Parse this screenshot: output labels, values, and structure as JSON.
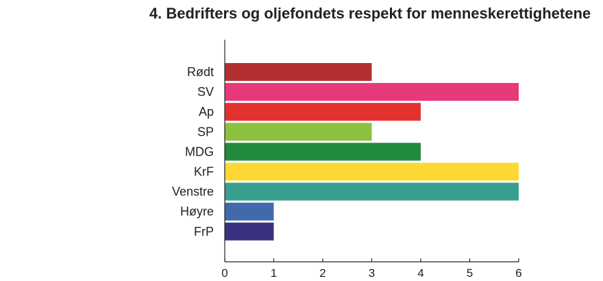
{
  "chart_data": {
    "type": "bar",
    "orientation": "horizontal",
    "title": "4. Bedrifters og oljefondets respekt for menneskerettighetene",
    "xlabel": "",
    "ylabel": "",
    "xlim": [
      0,
      6
    ],
    "xticks": [
      "0",
      "1",
      "2",
      "3",
      "4",
      "5",
      "6"
    ],
    "grid": false,
    "categories": [
      "Rødt",
      "SV",
      "Ap",
      "SP",
      "MDG",
      "KrF",
      "Venstre",
      "Høyre",
      "FrP"
    ],
    "values": [
      3,
      6,
      4,
      3,
      4,
      6,
      6,
      1,
      1
    ],
    "colors": [
      "#b22f32",
      "#e6397a",
      "#e33130",
      "#8dc03f",
      "#238b3e",
      "#fdd835",
      "#39a08f",
      "#4169ab",
      "#3b3183"
    ]
  }
}
